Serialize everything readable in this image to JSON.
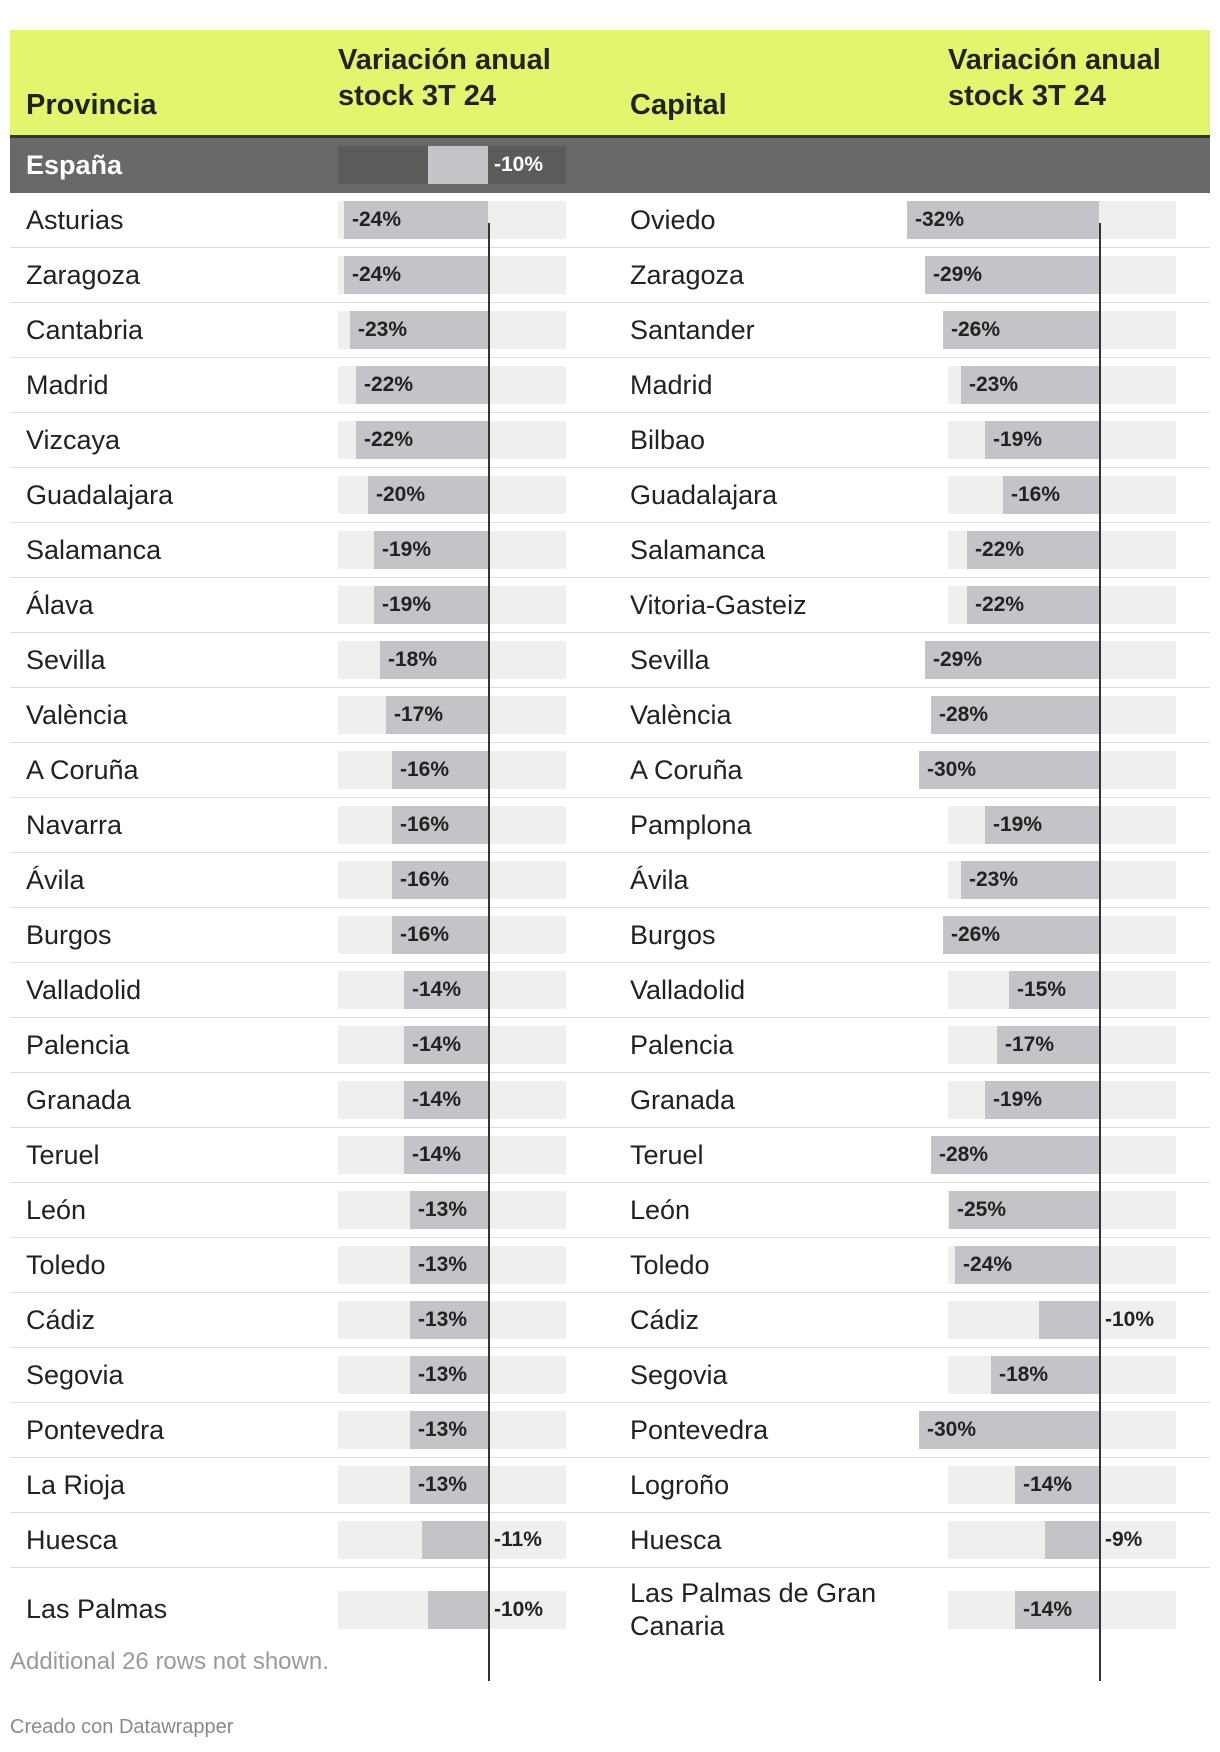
{
  "headers": {
    "provincia": "Provincia",
    "variacion_prov": "Variación anual\nstock 3T 24",
    "capital": "Capital",
    "variacion_cap": "Variación anual\nstock 3T 24"
  },
  "national": {
    "name": "España",
    "value": -10,
    "label": "-10%"
  },
  "chart_data": {
    "type": "table",
    "columns": [
      "Provincia",
      "Variación anual stock 3T 24",
      "Capital",
      "Variación anual stock 3T 24"
    ],
    "rows": [
      {
        "provincia": "Asturias",
        "prov_value": -24,
        "prov_label": "-24%",
        "capital": "Oviedo",
        "cap_value": -32,
        "cap_label": "-32%"
      },
      {
        "provincia": "Zaragoza",
        "prov_value": -24,
        "prov_label": "-24%",
        "capital": "Zaragoza",
        "cap_value": -29,
        "cap_label": "-29%"
      },
      {
        "provincia": "Cantabria",
        "prov_value": -23,
        "prov_label": "-23%",
        "capital": "Santander",
        "cap_value": -26,
        "cap_label": "-26%"
      },
      {
        "provincia": "Madrid",
        "prov_value": -22,
        "prov_label": "-22%",
        "capital": "Madrid",
        "cap_value": -23,
        "cap_label": "-23%"
      },
      {
        "provincia": "Vizcaya",
        "prov_value": -22,
        "prov_label": "-22%",
        "capital": "Bilbao",
        "cap_value": -19,
        "cap_label": "-19%"
      },
      {
        "provincia": "Guadalajara",
        "prov_value": -20,
        "prov_label": "-20%",
        "capital": "Guadalajara",
        "cap_value": -16,
        "cap_label": "-16%"
      },
      {
        "provincia": "Salamanca",
        "prov_value": -19,
        "prov_label": "-19%",
        "capital": "Salamanca",
        "cap_value": -22,
        "cap_label": "-22%"
      },
      {
        "provincia": "Álava",
        "prov_value": -19,
        "prov_label": "-19%",
        "capital": "Vitoria-Gasteiz",
        "cap_value": -22,
        "cap_label": "-22%"
      },
      {
        "provincia": "Sevilla",
        "prov_value": -18,
        "prov_label": "-18%",
        "capital": "Sevilla",
        "cap_value": -29,
        "cap_label": "-29%"
      },
      {
        "provincia": "València",
        "prov_value": -17,
        "prov_label": "-17%",
        "capital": "València",
        "cap_value": -28,
        "cap_label": "-28%"
      },
      {
        "provincia": "A Coruña",
        "prov_value": -16,
        "prov_label": "-16%",
        "capital": "A Coruña",
        "cap_value": -30,
        "cap_label": "-30%"
      },
      {
        "provincia": "Navarra",
        "prov_value": -16,
        "prov_label": "-16%",
        "capital": "Pamplona",
        "cap_value": -19,
        "cap_label": "-19%"
      },
      {
        "provincia": "Ávila",
        "prov_value": -16,
        "prov_label": "-16%",
        "capital": "Ávila",
        "cap_value": -23,
        "cap_label": "-23%"
      },
      {
        "provincia": "Burgos",
        "prov_value": -16,
        "prov_label": "-16%",
        "capital": "Burgos",
        "cap_value": -26,
        "cap_label": "-26%"
      },
      {
        "provincia": "Valladolid",
        "prov_value": -14,
        "prov_label": "-14%",
        "capital": "Valladolid",
        "cap_value": -15,
        "cap_label": "-15%"
      },
      {
        "provincia": "Palencia",
        "prov_value": -14,
        "prov_label": "-14%",
        "capital": "Palencia",
        "cap_value": -17,
        "cap_label": "-17%"
      },
      {
        "provincia": "Granada",
        "prov_value": -14,
        "prov_label": "-14%",
        "capital": "Granada",
        "cap_value": -19,
        "cap_label": "-19%"
      },
      {
        "provincia": "Teruel",
        "prov_value": -14,
        "prov_label": "-14%",
        "capital": "Teruel",
        "cap_value": -28,
        "cap_label": "-28%"
      },
      {
        "provincia": "León",
        "prov_value": -13,
        "prov_label": "-13%",
        "capital": "León",
        "cap_value": -25,
        "cap_label": "-25%"
      },
      {
        "provincia": "Toledo",
        "prov_value": -13,
        "prov_label": "-13%",
        "capital": "Toledo",
        "cap_value": -24,
        "cap_label": "-24%"
      },
      {
        "provincia": "Cádiz",
        "prov_value": -13,
        "prov_label": "-13%",
        "capital": "Cádiz",
        "cap_value": -10,
        "cap_label": "-10%"
      },
      {
        "provincia": "Segovia",
        "prov_value": -13,
        "prov_label": "-13%",
        "capital": "Segovia",
        "cap_value": -18,
        "cap_label": "-18%"
      },
      {
        "provincia": "Pontevedra",
        "prov_value": -13,
        "prov_label": "-13%",
        "capital": "Pontevedra",
        "cap_value": -30,
        "cap_label": "-30%"
      },
      {
        "provincia": "La Rioja",
        "prov_value": -13,
        "prov_label": "-13%",
        "capital": "Logroño",
        "cap_value": -14,
        "cap_label": "-14%"
      },
      {
        "provincia": "Huesca",
        "prov_value": -11,
        "prov_label": "-11%",
        "capital": "Huesca",
        "cap_value": -9,
        "cap_label": "-9%"
      },
      {
        "provincia": "Las Palmas",
        "prov_value": -10,
        "prov_label": "-10%",
        "capital": "Las Palmas de Gran Canaria",
        "cap_value": -14,
        "cap_label": "-14%"
      }
    ]
  },
  "footer": {
    "note": "Additional 26 rows not shown.",
    "credit": "Creado con Datawrapper"
  },
  "colors": {
    "header_bg": "#e3f56c",
    "national_row_bg": "#686868",
    "bar_fill": "#c3c3c8",
    "bar_track": "#efefef"
  }
}
